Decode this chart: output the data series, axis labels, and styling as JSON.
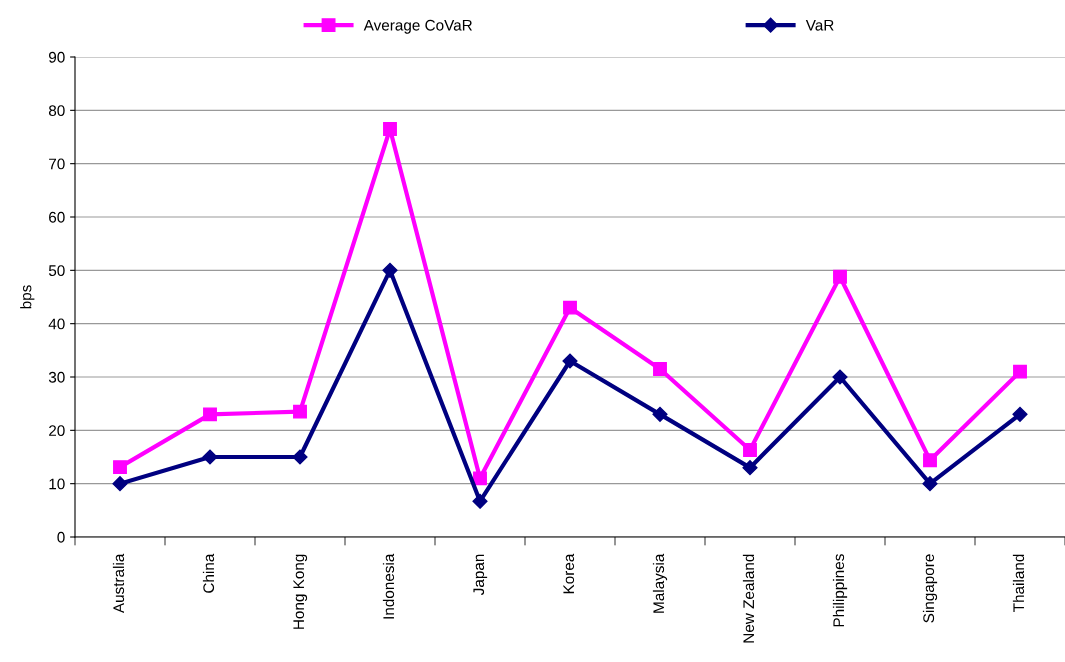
{
  "chart_data": {
    "type": "line",
    "ylabel": "bps",
    "categories": [
      "Australia",
      "China",
      "Hong Kong",
      "Indonesia",
      "Japan",
      "Korea",
      "Malaysia",
      "New Zealand",
      "Philippines",
      "Singapore",
      "Thailand"
    ],
    "series": [
      {
        "name": "Average CoVaR",
        "color": "#ff00ff",
        "marker": "square",
        "values": [
          13.1,
          23,
          23.5,
          76.5,
          11,
          43,
          31.5,
          16.3,
          48.8,
          14.4,
          31
        ]
      },
      {
        "name": "VaR",
        "color": "#000080",
        "marker": "diamond",
        "values": [
          10,
          15,
          15,
          50,
          6.7,
          33,
          23,
          13,
          30,
          10,
          23
        ]
      }
    ],
    "ylim": [
      0,
      90
    ],
    "yticks": [
      0,
      10,
      20,
      30,
      40,
      50,
      60,
      70,
      80,
      90
    ],
    "grid": "y",
    "legend": "top"
  }
}
